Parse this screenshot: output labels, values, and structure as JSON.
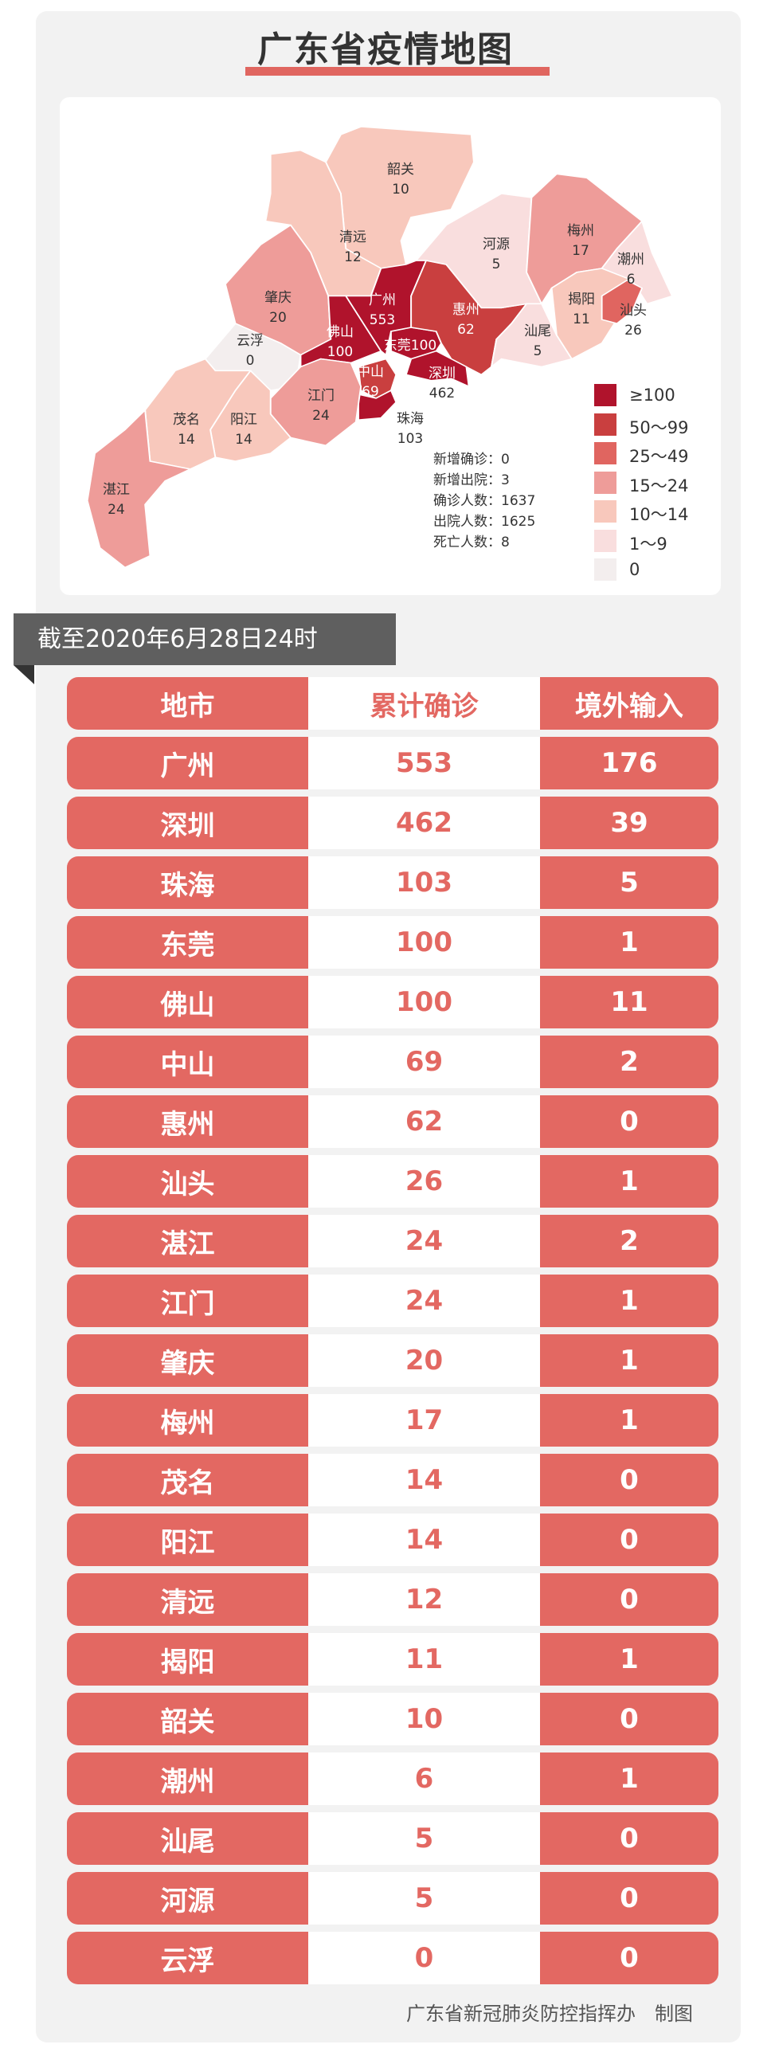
{
  "title": "广东省疫情地图",
  "colors": {
    "accent": "#e36862",
    "ge100": "#b0132c",
    "c50_99": "#c93f3f",
    "c25_49": "#e06560",
    "c15_24": "#ee9c99",
    "c10_14": "#f8c8bc",
    "c1_9": "#f9dede",
    "c0": "#f3eeee"
  },
  "chart_data": {
    "type": "choropleth",
    "regions": [
      {
        "name": "韶关",
        "value": "10"
      },
      {
        "name": "清远",
        "value": "12"
      },
      {
        "name": "肇庆",
        "value": "20"
      },
      {
        "name": "云浮",
        "value": "0"
      },
      {
        "name": "佛山",
        "value": "100"
      },
      {
        "name": "广州",
        "value": "553"
      },
      {
        "name": "东莞",
        "value": "100"
      },
      {
        "name": "惠州",
        "value": "62"
      },
      {
        "name": "深圳",
        "value": "462"
      },
      {
        "name": "中山",
        "value": "69"
      },
      {
        "name": "珠海",
        "value": "103"
      },
      {
        "name": "江门",
        "value": "24"
      },
      {
        "name": "阳江",
        "value": "14"
      },
      {
        "name": "茂名",
        "value": "14"
      },
      {
        "name": "湛江",
        "value": "24"
      },
      {
        "name": "河源",
        "value": "5"
      },
      {
        "name": "梅州",
        "value": "17"
      },
      {
        "name": "潮州",
        "value": "6"
      },
      {
        "name": "揭阳",
        "value": "11"
      },
      {
        "name": "汕头",
        "value": "26"
      },
      {
        "name": "汕尾",
        "value": "5"
      }
    ],
    "legend": [
      {
        "label": "≥100",
        "color": "#b0132c"
      },
      {
        "label": "50～99",
        "color": "#c93f3f"
      },
      {
        "label": "25～49",
        "color": "#e06560"
      },
      {
        "label": "15～24",
        "color": "#ee9c99"
      },
      {
        "label": "10～14",
        "color": "#f8c8bc"
      },
      {
        "label": "1～9",
        "color": "#f9dede"
      },
      {
        "label": "0",
        "color": "#f3eeee"
      }
    ]
  },
  "stats": [
    "新增确诊：0",
    "新增出院：3",
    "确诊人数：1637",
    "出院人数：1625",
    "死亡人数：8"
  ],
  "date_banner": "截至2020年6月28日24时",
  "table": {
    "headers": [
      "地市",
      "累计确诊",
      "境外输入"
    ],
    "rows": [
      [
        "广州",
        "553",
        "176"
      ],
      [
        "深圳",
        "462",
        "39"
      ],
      [
        "珠海",
        "103",
        "5"
      ],
      [
        "东莞",
        "100",
        "1"
      ],
      [
        "佛山",
        "100",
        "11"
      ],
      [
        "中山",
        "69",
        "2"
      ],
      [
        "惠州",
        "62",
        "0"
      ],
      [
        "汕头",
        "26",
        "1"
      ],
      [
        "湛江",
        "24",
        "2"
      ],
      [
        "江门",
        "24",
        "1"
      ],
      [
        "肇庆",
        "20",
        "1"
      ],
      [
        "梅州",
        "17",
        "1"
      ],
      [
        "茂名",
        "14",
        "0"
      ],
      [
        "阳江",
        "14",
        "0"
      ],
      [
        "清远",
        "12",
        "0"
      ],
      [
        "揭阳",
        "11",
        "1"
      ],
      [
        "韶关",
        "10",
        "0"
      ],
      [
        "潮州",
        "6",
        "1"
      ],
      [
        "汕尾",
        "5",
        "0"
      ],
      [
        "河源",
        "5",
        "0"
      ],
      [
        "云浮",
        "0",
        "0"
      ]
    ]
  },
  "footer": "广东省新冠肺炎防控指挥办　制图"
}
